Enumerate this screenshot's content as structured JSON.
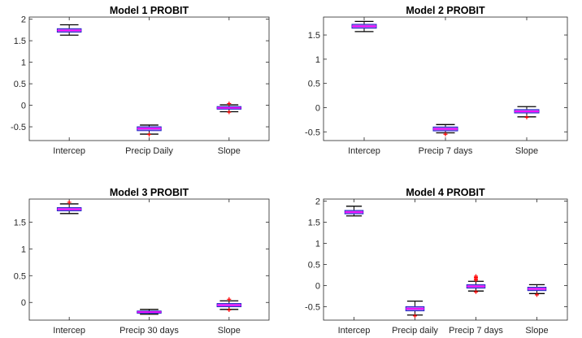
{
  "chart_data": [
    {
      "type": "box",
      "title": "Model 1 PROBIT",
      "categories": [
        "Intercep",
        "Precip Daily",
        "Slope"
      ],
      "yticks": [
        -0.5,
        0,
        0.5,
        1,
        1.5,
        2
      ],
      "ylim": [
        -0.82,
        2.05
      ],
      "boxes": [
        {
          "whisker_low": 1.63,
          "q1": 1.7,
          "median": 1.74,
          "q3": 1.78,
          "whisker_high": 1.87,
          "outliers": []
        },
        {
          "whisker_low": -0.67,
          "q1": -0.59,
          "median": -0.54,
          "q3": -0.5,
          "whisker_high": -0.46,
          "outliers": [
            -0.68
          ]
        },
        {
          "whisker_low": -0.15,
          "q1": -0.09,
          "median": -0.06,
          "q3": -0.03,
          "whisker_high": 0.01,
          "outliers": [
            0.04,
            -0.16
          ]
        }
      ]
    },
    {
      "type": "box",
      "title": "Model 2 PROBIT",
      "categories": [
        "Intercep",
        "Precip 7 days",
        "Slope"
      ],
      "yticks": [
        -0.5,
        0,
        0.5,
        1,
        1.5
      ],
      "ylim": [
        -0.68,
        1.87
      ],
      "boxes": [
        {
          "whisker_low": 1.57,
          "q1": 1.64,
          "median": 1.68,
          "q3": 1.72,
          "whisker_high": 1.78,
          "outliers": []
        },
        {
          "whisker_low": -0.52,
          "q1": -0.48,
          "median": -0.44,
          "q3": -0.4,
          "whisker_high": -0.35,
          "outliers": [
            -0.55
          ]
        },
        {
          "whisker_low": -0.19,
          "q1": -0.11,
          "median": -0.08,
          "q3": -0.04,
          "whisker_high": 0.02,
          "outliers": [
            -0.2
          ]
        }
      ]
    },
    {
      "type": "box",
      "title": "Model 3 PROBIT",
      "categories": [
        "Intercep",
        "Precip 30 days",
        "Slope"
      ],
      "yticks": [
        0,
        0.5,
        1,
        1.5
      ],
      "ylim": [
        -0.33,
        1.93
      ],
      "boxes": [
        {
          "whisker_low": 1.66,
          "q1": 1.71,
          "median": 1.74,
          "q3": 1.77,
          "whisker_high": 1.84,
          "outliers": [
            1.87
          ]
        },
        {
          "whisker_low": -0.22,
          "q1": -0.2,
          "median": -0.18,
          "q3": -0.16,
          "whisker_high": -0.13,
          "outliers": []
        },
        {
          "whisker_low": -0.13,
          "q1": -0.08,
          "median": -0.05,
          "q3": -0.02,
          "whisker_high": 0.03,
          "outliers": [
            0.06,
            -0.14
          ]
        }
      ]
    },
    {
      "type": "box",
      "title": "Model 4 PROBIT",
      "categories": [
        "Intercep",
        "Precip daily",
        "Precip 7 days",
        "Slope"
      ],
      "yticks": [
        -0.5,
        0,
        0.5,
        1,
        1.5,
        2
      ],
      "ylim": [
        -0.82,
        2.05
      ],
      "boxes": [
        {
          "whisker_low": 1.65,
          "q1": 1.7,
          "median": 1.74,
          "q3": 1.78,
          "whisker_high": 1.88,
          "outliers": []
        },
        {
          "whisker_low": -0.7,
          "q1": -0.6,
          "median": -0.55,
          "q3": -0.5,
          "whisker_high": -0.37,
          "outliers": [
            -0.72
          ]
        },
        {
          "whisker_low": -0.13,
          "q1": -0.06,
          "median": -0.02,
          "q3": 0.02,
          "whisker_high": 0.1,
          "outliers": [
            0.13,
            0.16,
            0.19,
            0.22,
            -0.15
          ]
        },
        {
          "whisker_low": -0.19,
          "q1": -0.12,
          "median": -0.08,
          "q3": -0.04,
          "whisker_high": 0.02,
          "outliers": [
            -0.22
          ]
        }
      ]
    }
  ],
  "colors": {
    "box_fill": "#a970e6",
    "box_edge": "#2525c8",
    "median": "#ff00ff",
    "whisker": "#000000",
    "outlier": "#ff0000",
    "axis": "#262626",
    "grid": "none"
  }
}
